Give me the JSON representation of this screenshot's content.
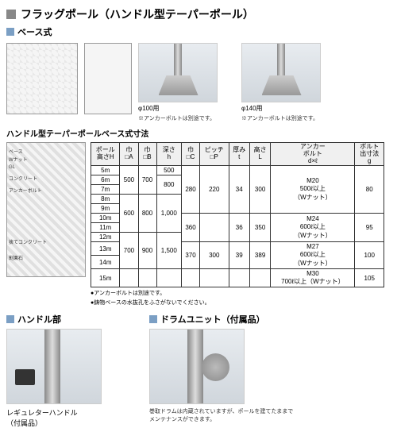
{
  "colors": {
    "accent": "#7b9fc4",
    "gray": "#888"
  },
  "header": {
    "title": "フラッグポール（ハンドル型テーパーポール）"
  },
  "sub": {
    "label": "ベース式"
  },
  "photos": {
    "p1": {
      "caption": "φ100用",
      "note": "※アンカーボルトは別途です。"
    },
    "p2": {
      "caption": "φ140用",
      "note": "※アンカーボルトは別途です。"
    }
  },
  "diagLabels": {
    "l1": "ベース",
    "l2": "Wナット",
    "l3": "GL",
    "l4": "コンクリート",
    "l5": "アンカーボルト",
    "l6": "捨てコンクリート",
    "l7": "割栗石"
  },
  "table": {
    "title": "ハンドル型テーパーポールベース式寸法",
    "headers": {
      "h1": "ポール\n高さH",
      "h2": "巾\n□A",
      "h3": "巾\n□B",
      "h4": "深さ\nh",
      "h5": "巾\n□C",
      "h6": "ピッチ\n□P",
      "h7": "厚み\nt",
      "h8": "高さ\nL",
      "h9": "アンカー\nボルト\nd×ℓ",
      "h10": "ボルト\n出寸法\ng"
    },
    "rows": [
      {
        "h": "5m",
        "a": "500",
        "b": "700",
        "d": "500",
        "c": "280",
        "p": "220",
        "t": "34",
        "l": "300",
        "bolt": "M20\n500ℓ以上\n（Wナット）",
        "g": "80"
      },
      {
        "h": "6m",
        "a": "500",
        "b": "700",
        "d": "800",
        "c": "280",
        "p": "220",
        "t": "34",
        "l": "300",
        "bolt": "",
        "g": "80"
      },
      {
        "h": "7m",
        "a": "500",
        "b": "700",
        "d": "800",
        "c": "280",
        "p": "220",
        "t": "34",
        "l": "300",
        "bolt": "",
        "g": "80"
      },
      {
        "h": "8m",
        "a": "600",
        "b": "800",
        "d": "1,000",
        "c": "280",
        "p": "220",
        "t": "34",
        "l": "300",
        "bolt": "",
        "g": "80"
      },
      {
        "h": "9m",
        "a": "600",
        "b": "800",
        "d": "1,000",
        "c": "280",
        "p": "220",
        "t": "34",
        "l": "300",
        "bolt": "",
        "g": "80"
      },
      {
        "h": "10m",
        "a": "600",
        "b": "800",
        "d": "1,000",
        "c": "360",
        "p": "",
        "t": "36",
        "l": "350",
        "bolt": "M24\n600ℓ以上\n（Wナット）",
        "g": "95"
      },
      {
        "h": "11m",
        "a": "600",
        "b": "800",
        "d": "1,000",
        "c": "360",
        "p": "",
        "t": "36",
        "l": "350",
        "bolt": "",
        "g": "95"
      },
      {
        "h": "12m",
        "a": "700",
        "b": "900",
        "d": "1,500",
        "c": "360",
        "p": "",
        "t": "36",
        "l": "350",
        "bolt": "",
        "g": "95"
      },
      {
        "h": "13m",
        "a": "700",
        "b": "900",
        "d": "1,500",
        "c": "370",
        "p": "300",
        "t": "39",
        "l": "389",
        "bolt": "M27\n600ℓ以上\n（Wナット）",
        "g": "100"
      },
      {
        "h": "14m",
        "a": "700",
        "b": "900",
        "d": "1,500",
        "c": "370",
        "p": "300",
        "t": "39",
        "l": "389",
        "bolt": "",
        "g": "100"
      },
      {
        "h": "15m",
        "a": "",
        "b": "",
        "d": "",
        "c": "",
        "p": "",
        "t": "",
        "l": "",
        "bolt": "M30\n700ℓ以上（Wナット）",
        "g": "105"
      }
    ],
    "notes": {
      "n1": "●アンカーボルトは別途です。",
      "n2": "●鋳物ベースの水抜孔をふさがないでください。"
    }
  },
  "bottom": {
    "left": {
      "title": "ハンドル部",
      "caption": "レギュレターハンドル\n（付属品）"
    },
    "right": {
      "title": "ドラムユニット（付属品）",
      "caption": "巻取ドラムは内蔵されていますが、ポールを建てたままで\nメンテナンスができます。"
    }
  }
}
